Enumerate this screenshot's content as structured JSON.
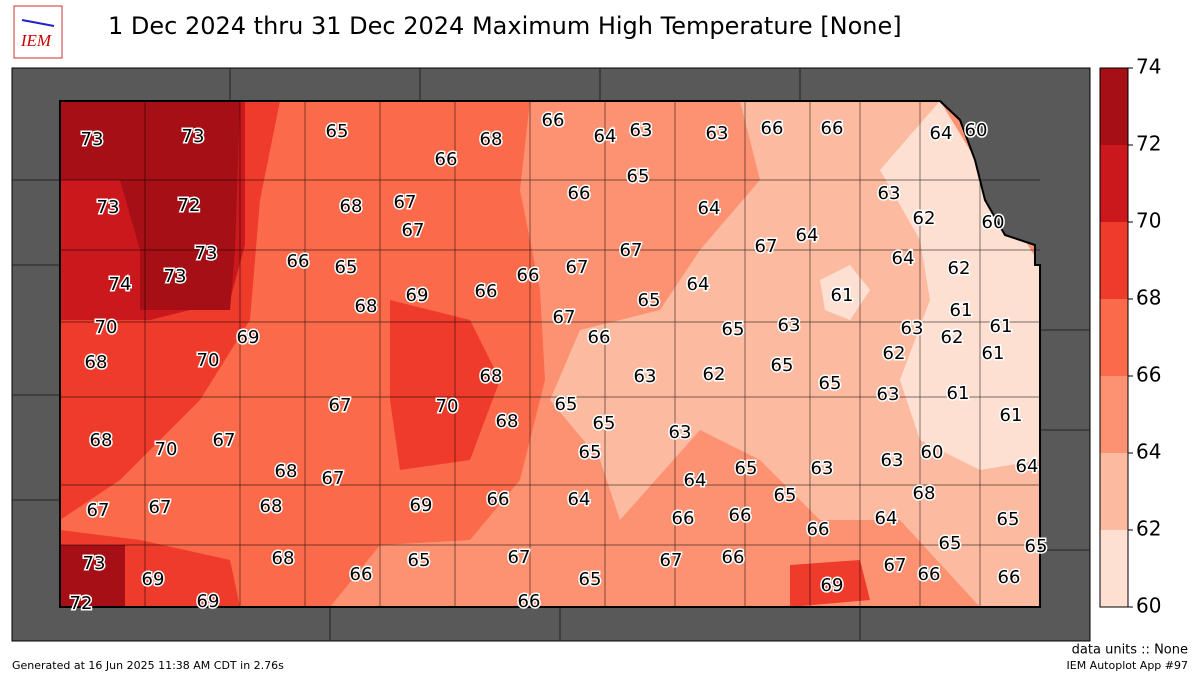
{
  "header": {
    "logo": "IEM",
    "title": "1 Dec 2024 thru 31 Dec 2024 Maximum High Temperature [None]"
  },
  "stations": {
    "values": [
      73,
      73,
      65,
      66,
      68,
      66,
      64,
      63,
      63,
      66,
      66,
      64,
      60,
      73,
      72,
      68,
      67,
      67,
      66,
      65,
      64,
      63,
      62,
      60,
      73,
      73,
      74,
      66,
      65,
      66,
      67,
      67,
      67,
      64,
      64,
      62,
      68,
      69,
      66,
      64,
      65,
      61,
      61,
      70,
      69,
      67,
      66,
      65,
      63,
      63,
      62,
      61,
      68,
      70,
      68,
      63,
      62,
      65,
      65,
      62,
      61,
      67,
      70,
      65,
      65,
      68,
      63,
      63,
      61,
      61,
      68,
      70,
      67,
      65,
      63,
      60,
      64,
      68,
      67,
      65,
      64,
      63,
      68,
      67,
      67,
      68,
      69,
      66,
      64,
      65,
      66,
      66,
      66,
      64,
      65,
      73,
      69,
      68,
      66,
      65,
      67,
      65,
      67,
      66,
      69,
      67,
      66,
      65,
      65,
      66,
      72,
      69,
      66
    ]
  },
  "colorbar": {
    "levels": [
      60,
      62,
      64,
      66,
      68,
      70,
      72,
      74
    ],
    "colors": [
      "#fee0d2",
      "#fcbba1",
      "#fc9272",
      "#fb6a4a",
      "#ef3b2c",
      "#cb181d",
      "#a50f15"
    ]
  },
  "footer": {
    "generated": "Generated at 16 Jun 2025 11:38 AM CDT in 2.76s",
    "units": "data units :: None",
    "app": "IEM Autoplot App #97"
  }
}
